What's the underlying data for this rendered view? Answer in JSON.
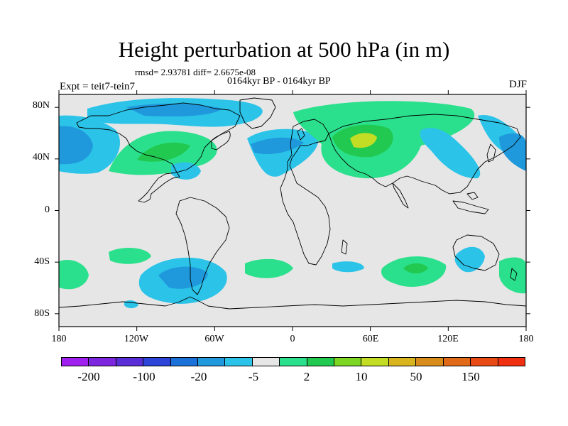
{
  "title": "Height perturbation at 500 hPa (in m)",
  "stats": "rmsd= 2.93781 diff= 2.6675e-08",
  "subtitle": "0164kyr BP - 0164kyr BP",
  "left_label": "Expt = teit7-tein7",
  "right_label": "DJF",
  "map": {
    "projection": "cylindrical-equidistant",
    "lon_range": [
      -180,
      180
    ],
    "lat_range": [
      -90,
      90
    ],
    "lat_ticks": [
      "80N",
      "40N",
      "0",
      "40S",
      "80S"
    ],
    "lon_ticks": [
      "180",
      "120W",
      "60W",
      "0",
      "60E",
      "120E",
      "180"
    ],
    "background_color": "#e6e6e6",
    "coastline_color": "#000000"
  },
  "colorbar": {
    "colors": [
      "#a020f0",
      "#7d26e0",
      "#5a2ed6",
      "#2d44d8",
      "#1c71d8",
      "#1f98dc",
      "#2bc3e8",
      "#e6e6e6",
      "#2be08c",
      "#22c950",
      "#7cd622",
      "#c2dd24",
      "#d8b41f",
      "#d88c1c",
      "#e06a18",
      "#e84a16",
      "#f03010"
    ],
    "labels": [
      "-200",
      "-100",
      "-20",
      "-5",
      "2",
      "10",
      "50",
      "150"
    ]
  },
  "anomalies": [
    {
      "region": "North Pacific",
      "lon": -165,
      "lat": 40,
      "sign": "negative",
      "strength": 2
    },
    {
      "region": "Arctic / North America",
      "lon": -90,
      "lat": 76,
      "sign": "negative",
      "strength": 1
    },
    {
      "region": "Western North America",
      "lon": -120,
      "lat": 45,
      "sign": "positive",
      "strength": 1
    },
    {
      "region": "North Atlantic",
      "lon": -30,
      "lat": 45,
      "sign": "negative",
      "strength": 1
    },
    {
      "region": "Eurasia",
      "lon": 60,
      "lat": 50,
      "sign": "positive",
      "strength": 3
    },
    {
      "region": "Northwest Pacific",
      "lon": 135,
      "lat": 45,
      "sign": "negative",
      "strength": 1
    },
    {
      "region": "South Pacific",
      "lon": -95,
      "lat": -50,
      "sign": "negative",
      "strength": 2
    },
    {
      "region": "South Indian Ocean",
      "lon": 95,
      "lat": -50,
      "sign": "positive",
      "strength": 1
    },
    {
      "region": "Australia",
      "lon": 142,
      "lat": -37,
      "sign": "negative",
      "strength": 1
    },
    {
      "region": "South Pacific west",
      "lon": -168,
      "lat": -50,
      "sign": "positive",
      "strength": 1
    }
  ]
}
